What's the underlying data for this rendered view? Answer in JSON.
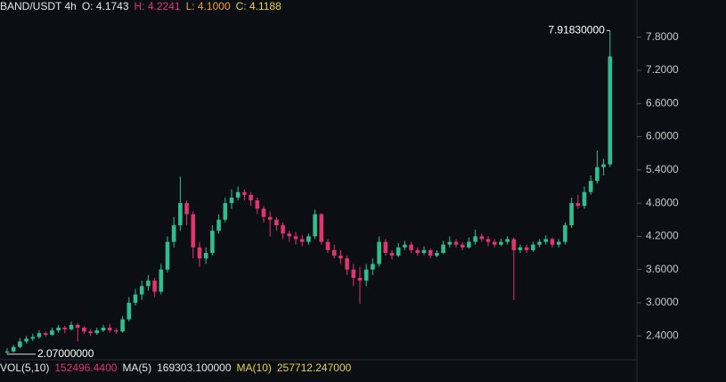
{
  "chart_data": {
    "type": "candlestick",
    "header": [
      {
        "text": "BAND/USDT 4h",
        "color": "#e6e6e6"
      },
      {
        "text": "O: 4.1743",
        "color": "#e6e6e6"
      },
      {
        "text": "H: 4.2241",
        "color": "#e0356d"
      },
      {
        "text": "L: 4.1000",
        "color": "#f0a030"
      },
      {
        "text": "C: 4.1188",
        "color": "#e8d24a"
      }
    ],
    "footer": [
      {
        "text": "VOL(5,10)",
        "color": "#e6e6e6"
      },
      {
        "text": "152496.4400",
        "color": "#e0356d"
      },
      {
        "text": "MA(5)",
        "color": "#e6e6e6"
      },
      {
        "text": "169303.100000",
        "color": "#e6e6e6"
      },
      {
        "text": "MA(10)",
        "color": "#e8d24a"
      },
      {
        "text": "257712.247000",
        "color": "#e8d24a"
      }
    ],
    "up_color": "#2fbf8f",
    "down_color": "#e0356d",
    "ylim": [
      1.97,
      8.47
    ],
    "yticks": [
      {
        "value": 2.4,
        "label": "2.4000"
      },
      {
        "value": 3.0,
        "label": "3.0000"
      },
      {
        "value": 3.6,
        "label": "3.6000"
      },
      {
        "value": 4.2,
        "label": "4.2000"
      },
      {
        "value": 4.8,
        "label": "4.8000"
      },
      {
        "value": 5.4,
        "label": "5.4000"
      },
      {
        "value": 6.0,
        "label": "6.0000"
      },
      {
        "value": 6.6,
        "label": "6.6000"
      },
      {
        "value": 7.2,
        "label": "7.2000"
      },
      {
        "value": 7.8,
        "label": "7.8000"
      }
    ],
    "max_label": {
      "value": 7.9183,
      "label": "7.91830000"
    },
    "min_label": {
      "value": 2.07,
      "label": "2.07000000"
    },
    "ohlc": [
      [
        2.1,
        2.18,
        2.07,
        2.12
      ],
      [
        2.12,
        2.24,
        2.1,
        2.2
      ],
      [
        2.2,
        2.36,
        2.18,
        2.3
      ],
      [
        2.3,
        2.4,
        2.26,
        2.35
      ],
      [
        2.35,
        2.44,
        2.31,
        2.38
      ],
      [
        2.38,
        2.5,
        2.35,
        2.45
      ],
      [
        2.45,
        2.48,
        2.38,
        2.42
      ],
      [
        2.42,
        2.55,
        2.4,
        2.5
      ],
      [
        2.5,
        2.6,
        2.46,
        2.55
      ],
      [
        2.55,
        2.58,
        2.45,
        2.52
      ],
      [
        2.52,
        2.66,
        2.5,
        2.6
      ],
      [
        2.6,
        2.63,
        2.3,
        2.55
      ],
      [
        2.55,
        2.58,
        2.44,
        2.48
      ],
      [
        2.48,
        2.52,
        2.4,
        2.45
      ],
      [
        2.45,
        2.55,
        2.42,
        2.5
      ],
      [
        2.5,
        2.6,
        2.47,
        2.55
      ],
      [
        2.55,
        2.62,
        2.46,
        2.5
      ],
      [
        2.5,
        2.54,
        2.44,
        2.48
      ],
      [
        2.48,
        2.76,
        2.46,
        2.7
      ],
      [
        2.7,
        3.1,
        2.66,
        3.0
      ],
      [
        3.0,
        3.25,
        2.95,
        3.15
      ],
      [
        3.15,
        3.4,
        3.05,
        3.3
      ],
      [
        3.3,
        3.5,
        3.22,
        3.4
      ],
      [
        3.4,
        3.45,
        3.1,
        3.2
      ],
      [
        3.2,
        3.7,
        3.15,
        3.6
      ],
      [
        3.6,
        4.2,
        3.55,
        4.1
      ],
      [
        4.1,
        4.55,
        4.0,
        4.4
      ],
      [
        4.4,
        5.28,
        4.3,
        4.8
      ],
      [
        4.8,
        4.85,
        4.4,
        4.6
      ],
      [
        4.6,
        4.65,
        3.8,
        4.0
      ],
      [
        4.0,
        4.1,
        3.65,
        3.8
      ],
      [
        3.8,
        4.0,
        3.7,
        3.9
      ],
      [
        3.9,
        4.4,
        3.85,
        4.3
      ],
      [
        4.3,
        4.6,
        4.25,
        4.5
      ],
      [
        4.5,
        4.9,
        4.45,
        4.8
      ],
      [
        4.8,
        5.05,
        4.7,
        4.9
      ],
      [
        4.9,
        5.1,
        4.85,
        5.0
      ],
      [
        5.0,
        5.05,
        4.85,
        4.95
      ],
      [
        4.95,
        5.0,
        4.75,
        4.85
      ],
      [
        4.85,
        4.9,
        4.6,
        4.7
      ],
      [
        4.7,
        4.75,
        4.45,
        4.55
      ],
      [
        4.55,
        4.65,
        4.2,
        4.5
      ],
      [
        4.5,
        4.55,
        4.3,
        4.4
      ],
      [
        4.4,
        4.45,
        4.15,
        4.25
      ],
      [
        4.25,
        4.3,
        4.1,
        4.2
      ],
      [
        4.2,
        4.28,
        4.05,
        4.15
      ],
      [
        4.15,
        4.22,
        4.02,
        4.1
      ],
      [
        4.1,
        4.25,
        4.05,
        4.2
      ],
      [
        4.2,
        4.68,
        4.15,
        4.6
      ],
      [
        4.6,
        4.62,
        4.05,
        4.1
      ],
      [
        4.1,
        4.15,
        3.9,
        3.95
      ],
      [
        3.95,
        4.05,
        3.8,
        3.85
      ],
      [
        3.85,
        3.95,
        3.7,
        3.8
      ],
      [
        3.8,
        3.85,
        3.5,
        3.6
      ],
      [
        3.6,
        3.7,
        3.3,
        3.45
      ],
      [
        3.45,
        3.65,
        2.98,
        3.4
      ],
      [
        3.4,
        3.7,
        3.3,
        3.6
      ],
      [
        3.6,
        3.8,
        3.5,
        3.7
      ],
      [
        3.7,
        4.2,
        3.65,
        4.1
      ],
      [
        4.1,
        4.15,
        3.85,
        3.9
      ],
      [
        3.9,
        3.95,
        3.78,
        3.85
      ],
      [
        3.85,
        4.08,
        3.82,
        4.0
      ],
      [
        4.0,
        4.12,
        3.95,
        4.05
      ],
      [
        4.05,
        4.1,
        3.9,
        3.95
      ],
      [
        3.95,
        4.0,
        3.85,
        3.9
      ],
      [
        3.9,
        4.02,
        3.86,
        3.95
      ],
      [
        3.95,
        3.98,
        3.8,
        3.85
      ],
      [
        3.85,
        3.95,
        3.82,
        3.9
      ],
      [
        3.9,
        4.12,
        3.88,
        4.05
      ],
      [
        4.05,
        4.2,
        4.0,
        4.1
      ],
      [
        4.1,
        4.15,
        4.0,
        4.05
      ],
      [
        4.05,
        4.1,
        3.95,
        4.0
      ],
      [
        4.0,
        4.18,
        3.98,
        4.1
      ],
      [
        4.1,
        4.32,
        4.05,
        4.2
      ],
      [
        4.2,
        4.25,
        4.1,
        4.15
      ],
      [
        4.15,
        4.2,
        4.02,
        4.1
      ],
      [
        4.1,
        4.15,
        4.0,
        4.05
      ],
      [
        4.05,
        4.16,
        4.02,
        4.1
      ],
      [
        4.1,
        4.2,
        4.05,
        4.15
      ],
      [
        4.15,
        4.18,
        3.05,
        3.95
      ],
      [
        3.95,
        4.05,
        3.9,
        4.0
      ],
      [
        4.0,
        4.05,
        3.9,
        3.95
      ],
      [
        3.95,
        4.1,
        3.92,
        4.05
      ],
      [
        4.05,
        4.15,
        4.0,
        4.1
      ],
      [
        4.1,
        4.22,
        4.05,
        4.15
      ],
      [
        4.15,
        4.18,
        4.0,
        4.05
      ],
      [
        4.05,
        4.15,
        4.0,
        4.1
      ],
      [
        4.1,
        4.45,
        4.05,
        4.4
      ],
      [
        4.4,
        4.9,
        4.35,
        4.8
      ],
      [
        4.8,
        4.95,
        4.7,
        4.75
      ],
      [
        4.75,
        5.1,
        4.7,
        5.0
      ],
      [
        5.0,
        5.3,
        4.95,
        5.2
      ],
      [
        5.2,
        5.75,
        5.15,
        5.45
      ],
      [
        5.45,
        5.6,
        5.3,
        5.5
      ],
      [
        5.5,
        7.9183,
        5.45,
        7.45
      ]
    ]
  }
}
